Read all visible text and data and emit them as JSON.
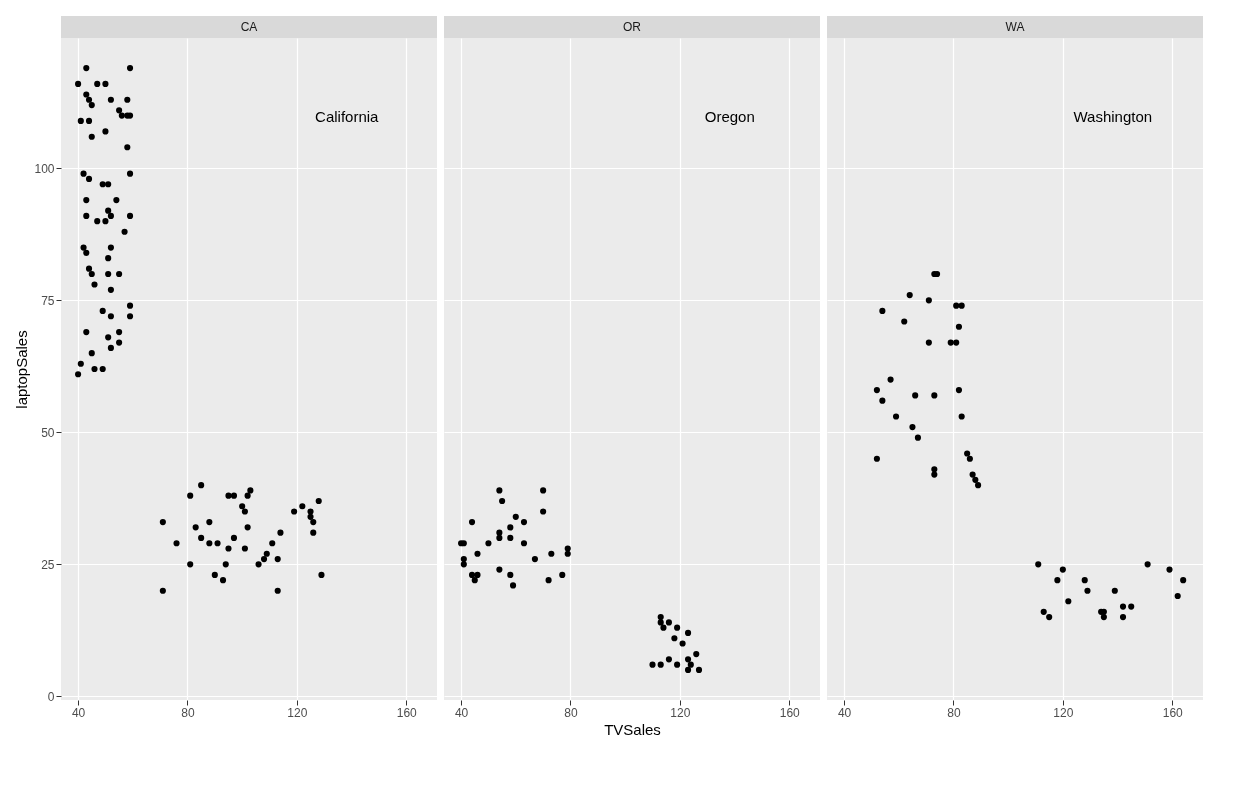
{
  "chart_data": [
    {
      "type": "scatter",
      "title": "CA",
      "ylabel": "laptopSales",
      "annotations": [
        "California"
      ],
      "xlim": [
        33.75,
        171.25
      ],
      "ylim": [
        -0.7,
        124.7
      ],
      "xticks": [
        40,
        80,
        120,
        160
      ],
      "yticks": [
        0,
        25,
        50,
        75,
        100
      ],
      "grid": true,
      "marker": "circle",
      "x": [
        43,
        59,
        40,
        43,
        44,
        47,
        50,
        52,
        55,
        58,
        45,
        41,
        44,
        50,
        58,
        59,
        56,
        45,
        58,
        42,
        59,
        44,
        49,
        51,
        43,
        54,
        43,
        47,
        50,
        52,
        59,
        51,
        57,
        42,
        43,
        52,
        51,
        44,
        45,
        51,
        55,
        46,
        52,
        49,
        52,
        59,
        59,
        43,
        55,
        51,
        55,
        52,
        45,
        41,
        46,
        49,
        40,
        71,
        71,
        76,
        81,
        81,
        85,
        83,
        88,
        85,
        88,
        91,
        90,
        93,
        94,
        95,
        97,
        95,
        97,
        100,
        101,
        102,
        103,
        102,
        101,
        106,
        108,
        109,
        111,
        114,
        113,
        113,
        119,
        122,
        125,
        125,
        126,
        126,
        128,
        129
      ],
      "series": [
        {
          "color": "#000000",
          "values": [
            119,
            119,
            116,
            114,
            113,
            116,
            116,
            113,
            111,
            113,
            112,
            109,
            109,
            107,
            110,
            110,
            110,
            106,
            104,
            99,
            99,
            98,
            97,
            97,
            94,
            94,
            91,
            90,
            90,
            91,
            91,
            92,
            88,
            85,
            84,
            85,
            83,
            81,
            80,
            80,
            80,
            78,
            77,
            73,
            72,
            74,
            72,
            69,
            69,
            68,
            67,
            66,
            65,
            63,
            62,
            62,
            61,
            33,
            20,
            29,
            38,
            25,
            40,
            32,
            33,
            30,
            29,
            29,
            23,
            22,
            25,
            28,
            30,
            38,
            38,
            36,
            35,
            38,
            39,
            32,
            28,
            25,
            26,
            27,
            29,
            31,
            26,
            20,
            35,
            36,
            35,
            34,
            33,
            31,
            37,
            23
          ]
        }
      ]
    },
    {
      "type": "scatter",
      "title": "OR",
      "xlabel": "TVSales",
      "annotations": [
        "Oregon"
      ],
      "xlim": [
        33.75,
        171.25
      ],
      "ylim": [
        -0.7,
        124.7
      ],
      "xticks": [
        40,
        80,
        120,
        160
      ],
      "yticks": [
        0,
        25,
        50,
        75,
        100
      ],
      "grid": true,
      "marker": "circle",
      "tick_labels": "x",
      "x": [
        40,
        41,
        41,
        41,
        44,
        46,
        44,
        45,
        46,
        50,
        54,
        55,
        54,
        54,
        54,
        58,
        58,
        58,
        59,
        60,
        63,
        63,
        67,
        70,
        70,
        73,
        72,
        77,
        79,
        79,
        113,
        113,
        114,
        116,
        119,
        123,
        118,
        121,
        110,
        113,
        116,
        119,
        123,
        126,
        123,
        127,
        124
      ],
      "series": [
        {
          "color": "#000000",
          "values": [
            29,
            29,
            26,
            25,
            33,
            27,
            23,
            22,
            23,
            29,
            39,
            37,
            31,
            30,
            24,
            32,
            30,
            23,
            21,
            34,
            33,
            29,
            26,
            39,
            35,
            27,
            22,
            23,
            28,
            27,
            15,
            14,
            13,
            14,
            13,
            12,
            11,
            10,
            6,
            6,
            7,
            6,
            7,
            8,
            5,
            5,
            6
          ]
        }
      ]
    },
    {
      "type": "scatter",
      "title": "WA",
      "annotations": [
        "Washington"
      ],
      "xlim": [
        33.75,
        171.25
      ],
      "ylim": [
        -0.7,
        124.7
      ],
      "xticks": [
        40,
        80,
        120,
        160
      ],
      "yticks": [
        0,
        25,
        50,
        75,
        100
      ],
      "grid": true,
      "marker": "circle",
      "tick_labels": "x",
      "x": [
        73,
        74,
        64,
        71,
        54,
        81,
        83,
        62,
        82,
        71,
        79,
        81,
        57,
        52,
        54,
        66,
        73,
        82,
        59,
        83,
        65,
        67,
        52,
        73,
        73,
        85,
        86,
        87,
        88,
        89,
        111,
        113,
        115,
        118,
        120,
        122,
        128,
        129,
        134,
        135,
        135,
        139,
        142,
        142,
        145,
        151,
        159,
        162,
        164
      ],
      "series": [
        {
          "color": "#000000",
          "values": [
            80,
            80,
            76,
            75,
            73,
            74,
            74,
            71,
            70,
            67,
            67,
            67,
            60,
            58,
            56,
            57,
            57,
            58,
            53,
            53,
            51,
            49,
            45,
            43,
            42,
            46,
            45,
            42,
            41,
            40,
            25,
            16,
            15,
            22,
            24,
            18,
            22,
            20,
            16,
            16,
            15,
            20,
            17,
            15,
            17,
            25,
            24,
            19,
            22
          ]
        }
      ]
    }
  ]
}
